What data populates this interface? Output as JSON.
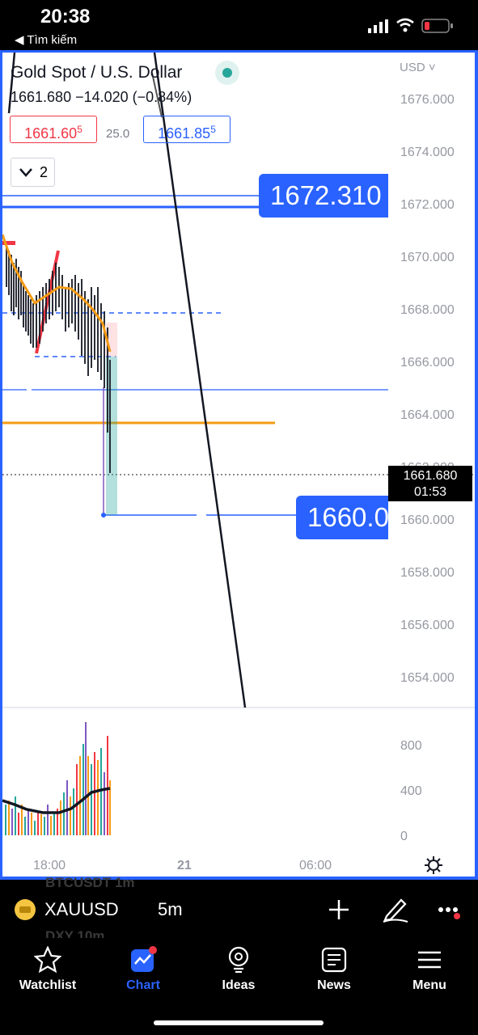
{
  "status_bar": {
    "time": "20:38",
    "back_label": "◀ Tìm kiếm"
  },
  "chart": {
    "symbol_title": "Gold Spot / U.S. Dollar",
    "quote": "1661.680  −14.020 (−0.84%)",
    "bid": "1661.60",
    "bid_sup": "5",
    "spread": "25.0",
    "ask": "1661.85",
    "ask_sup": "5",
    "indicator_count": "2",
    "currency": "USD",
    "price_axis": [
      "1676.000",
      "1674.000",
      "1672.000",
      "1670.000",
      "1668.000",
      "1666.000",
      "1664.000",
      "1662.000",
      "1660.000",
      "1658.000",
      "1656.000",
      "1654.000"
    ],
    "volume_axis": [
      "800",
      "400",
      "0"
    ],
    "time_axis": [
      "18:00",
      "21",
      "06:00"
    ],
    "label_high": "1672.310",
    "label_low": "1660.0",
    "last_price": "1661.680",
    "countdown": "01:53"
  },
  "toolbar": {
    "ticker_label": "XAUUSD",
    "interval_label": "5m",
    "ghost_1": "BTCUSDT    1m",
    "ghost_2": "DXY    10m"
  },
  "tabs": [
    {
      "label": "Watchlist",
      "icon": "star-icon"
    },
    {
      "label": "Chart",
      "icon": "chart-icon"
    },
    {
      "label": "Ideas",
      "icon": "lightbulb-icon"
    },
    {
      "label": "News",
      "icon": "news-icon"
    },
    {
      "label": "Menu",
      "icon": "menu-icon"
    }
  ],
  "colors": {
    "accent": "#2962ff",
    "down": "#f23645",
    "teal": "#26a69a",
    "orange": "#f59b14"
  }
}
